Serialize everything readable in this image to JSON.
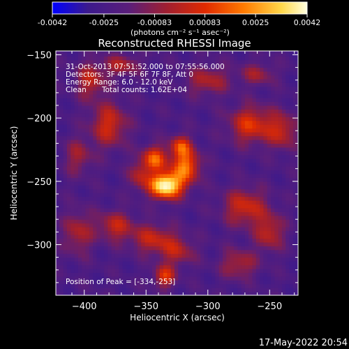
{
  "colorbar": {
    "tick_labels": [
      "-0.0042",
      "-0.0025",
      "-0.00083",
      "0.00083",
      "0.0025",
      "0.0042"
    ],
    "tick_values": [
      -0.0042,
      -0.0025,
      -0.00083,
      0.00083,
      0.0025,
      0.0042
    ],
    "range": [
      -0.0042,
      0.0042
    ],
    "units_label": "(photons cm⁻² s⁻¹ asec⁻²)",
    "colors": [
      "#0000ff",
      "#3c1a8c",
      "#5a1e7a",
      "#a01f30",
      "#e02a00",
      "#ff7a00",
      "#ffd84a",
      "#ffffe0"
    ]
  },
  "chart_data": {
    "type": "heatmap",
    "title": "Reconstructed RHESSI Image",
    "xlabel": "Heliocentric X (arcsec)",
    "ylabel": "Heliocentric Y (arcsec)",
    "xlim": [
      -423,
      -227
    ],
    "ylim": [
      -340,
      -147
    ],
    "x_ticks": [
      -400,
      -350,
      -300,
      -250
    ],
    "y_ticks": [
      -150,
      -200,
      -250,
      -300
    ],
    "x_tick_labels": [
      "−400",
      "−350",
      "−300",
      "−250"
    ],
    "y_tick_labels": [
      "−150",
      "−200",
      "−250",
      "−300"
    ],
    "colormap": "heat",
    "peak": [
      -334,
      -253
    ],
    "sources": [
      {
        "x": -334,
        "y": -253,
        "amp": 1.0,
        "sx": 9,
        "sy": 7
      },
      {
        "x": -318,
        "y": -238,
        "amp": 0.6,
        "sx": 8,
        "sy": 9
      },
      {
        "x": -343,
        "y": -232,
        "amp": 0.55,
        "sx": 7,
        "sy": 7
      },
      {
        "x": -322,
        "y": -222,
        "amp": 0.45,
        "sx": 6,
        "sy": 6
      },
      {
        "x": -355,
        "y": -245,
        "amp": 0.3,
        "sx": 6,
        "sy": 8
      },
      {
        "x": -380,
        "y": -205,
        "amp": 0.4,
        "sx": 10,
        "sy": 12
      },
      {
        "x": -395,
        "y": -170,
        "amp": 0.35,
        "sx": 8,
        "sy": 10
      },
      {
        "x": -370,
        "y": -158,
        "amp": 0.3,
        "sx": 10,
        "sy": 6
      },
      {
        "x": -265,
        "y": -205,
        "amp": 0.45,
        "sx": 12,
        "sy": 10
      },
      {
        "x": -240,
        "y": -210,
        "amp": 0.35,
        "sx": 8,
        "sy": 10
      },
      {
        "x": -300,
        "y": -170,
        "amp": 0.3,
        "sx": 12,
        "sy": 8
      },
      {
        "x": -260,
        "y": -165,
        "amp": 0.25,
        "sx": 10,
        "sy": 6
      },
      {
        "x": -270,
        "y": -270,
        "amp": 0.4,
        "sx": 12,
        "sy": 10
      },
      {
        "x": -250,
        "y": -290,
        "amp": 0.35,
        "sx": 8,
        "sy": 10
      },
      {
        "x": -375,
        "y": -285,
        "amp": 0.35,
        "sx": 10,
        "sy": 8
      },
      {
        "x": -345,
        "y": -295,
        "amp": 0.35,
        "sx": 12,
        "sy": 8
      },
      {
        "x": -405,
        "y": -290,
        "amp": 0.3,
        "sx": 8,
        "sy": 12
      },
      {
        "x": -335,
        "y": -325,
        "amp": 0.45,
        "sx": 6,
        "sy": 6
      },
      {
        "x": -325,
        "y": -305,
        "amp": 0.3,
        "sx": 10,
        "sy": 8
      },
      {
        "x": -275,
        "y": -315,
        "amp": 0.3,
        "sx": 10,
        "sy": 8
      },
      {
        "x": -405,
        "y": -230,
        "amp": 0.25,
        "sx": 8,
        "sy": 10
      }
    ],
    "annotations": {
      "time_range": "31-Oct-2013 07:51:52.000 to 07:55:56.000",
      "detectors": "Detectors: 3F 4F 5F 6F 7F 8F, Att 0",
      "energy": "Energy Range: 6.0 - 12.0 keV",
      "clean_label": "Clean",
      "counts": "Total counts: 1.62E+04",
      "peak_label": "Position of Peak = [-334,-253]"
    }
  },
  "footer": {
    "timestamp": "17-May-2022 20:54"
  }
}
